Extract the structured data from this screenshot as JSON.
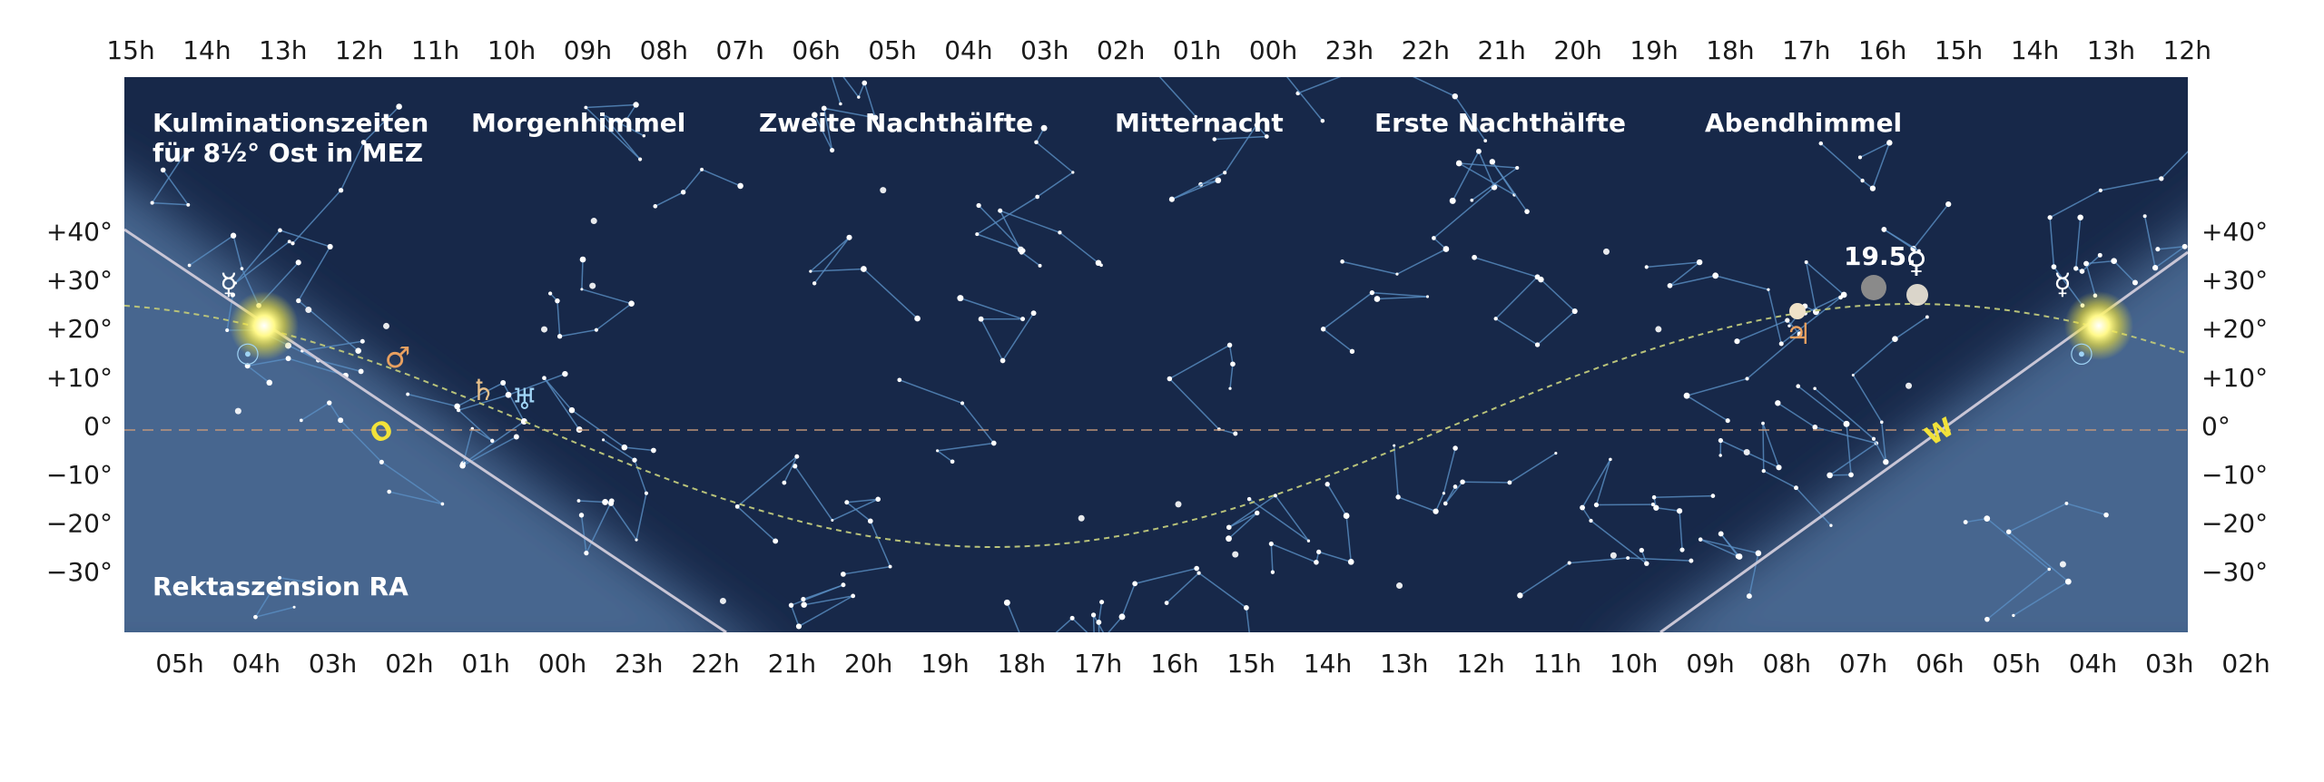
{
  "top_axis": [
    "15h",
    "14h",
    "13h",
    "12h",
    "11h",
    "10h",
    "09h",
    "08h",
    "07h",
    "06h",
    "05h",
    "04h",
    "03h",
    "02h",
    "01h",
    "00h",
    "23h",
    "22h",
    "21h",
    "20h",
    "19h",
    "18h",
    "17h",
    "16h",
    "15h",
    "14h",
    "13h",
    "12h"
  ],
  "bottom_axis": [
    "05h",
    "04h",
    "03h",
    "02h",
    "01h",
    "00h",
    "23h",
    "22h",
    "21h",
    "20h",
    "19h",
    "18h",
    "17h",
    "16h",
    "15h",
    "14h",
    "13h",
    "12h",
    "11h",
    "10h",
    "09h",
    "08h",
    "07h",
    "06h",
    "05h",
    "04h",
    "03h",
    "02h"
  ],
  "left_axis": [
    "+40°",
    "+30°",
    "+20°",
    "+10°",
    "0°",
    "−10°",
    "−20°",
    "−30°"
  ],
  "right_axis": [
    "+40°",
    "+30°",
    "+20°",
    "+10°",
    "0°",
    "−10°",
    "−20°",
    "−30°"
  ],
  "header": {
    "line1": "Kulminationszeiten",
    "line2": "für 8½° Ost in MEZ"
  },
  "sections": [
    "Morgenhimmel",
    "Zweite Nachthälfte",
    "Mitternacht",
    "Erste Nachthälfte",
    "Abendhimmel"
  ],
  "footer_label": "Rektaszension RA",
  "date_label": "19.5.",
  "directions": [
    "O",
    "W"
  ],
  "symbols": [
    "☿",
    "☉",
    "♂",
    "♄",
    "♅",
    "♀",
    "♃",
    "☿",
    "☉"
  ]
}
